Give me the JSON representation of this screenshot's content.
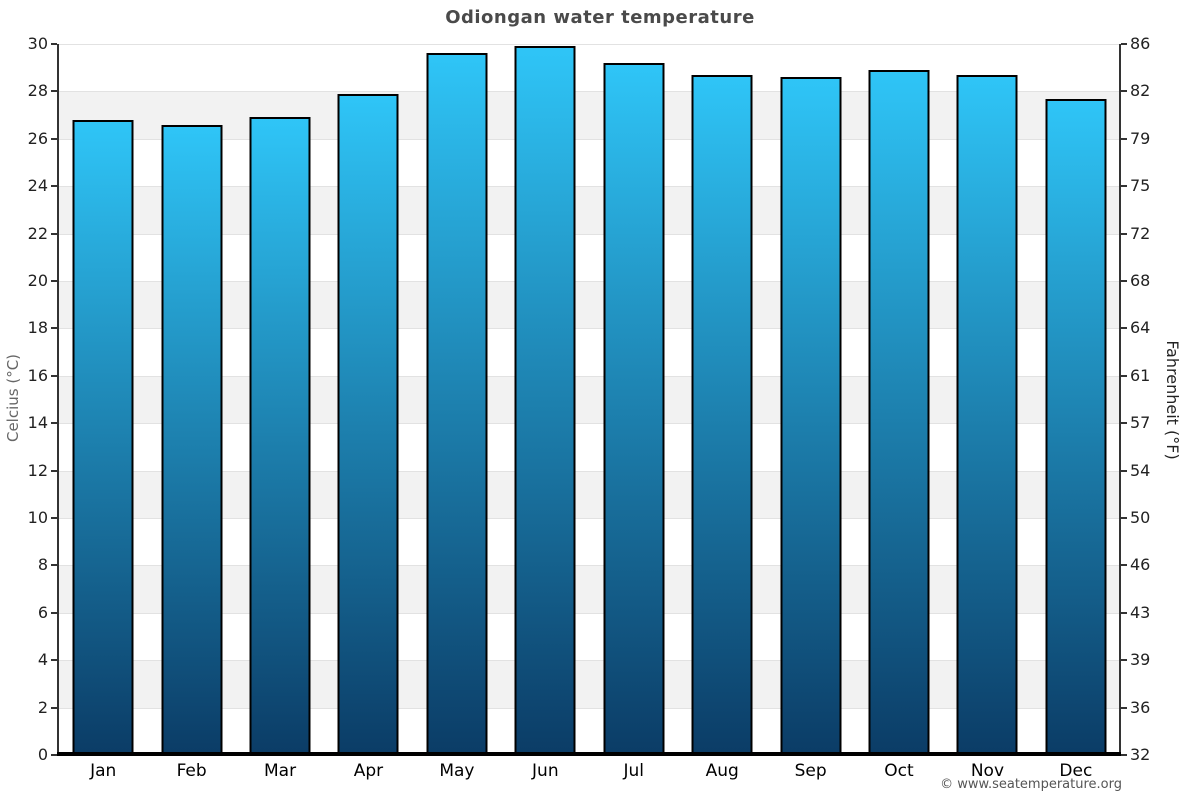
{
  "chart": {
    "title": "Odiongan water temperature",
    "left_axis_label": "Celcius (°C)",
    "right_axis_label": "Fahrenheit (°F)"
  },
  "footer": {
    "copyright": "© www.seatemperature.org"
  },
  "chart_data": {
    "type": "bar",
    "title": "Odiongan water temperature",
    "categories": [
      "Jan",
      "Feb",
      "Mar",
      "Apr",
      "May",
      "Jun",
      "Jul",
      "Aug",
      "Sep",
      "Oct",
      "Nov",
      "Dec"
    ],
    "values": [
      26.8,
      26.6,
      26.9,
      27.9,
      29.6,
      29.9,
      29.2,
      28.7,
      28.6,
      28.9,
      28.7,
      27.7
    ],
    "xlabel": "",
    "ylabel_left": "Celcius (°C)",
    "ylabel_right": "Fahrenheit (°F)",
    "ylim": [
      0,
      30
    ],
    "celsius_ticks": [
      30,
      28,
      26,
      24,
      22,
      20,
      18,
      16,
      14,
      12,
      10,
      8,
      6,
      4,
      2,
      0
    ],
    "fahrenheit_ticks": [
      86,
      82,
      79,
      75,
      72,
      68,
      64,
      61,
      57,
      54,
      50,
      46,
      43,
      39,
      36,
      32
    ],
    "grid": "alternating horizontal bands every 2°C, white and light gray",
    "legend": "none"
  },
  "colors": {
    "bar_gradient_top": "#2fc5f7",
    "bar_gradient_bottom": "#0b3c66",
    "bar_border": "#000000",
    "band_gray": "#f2f2f2",
    "band_white": "#ffffff",
    "gridline": "#e2e2e2",
    "axis_line": "#333333",
    "x_axis_line": "#000000",
    "title_text": "#4a4a4a",
    "tick_text": "#222222",
    "left_axis_title_text": "#666666",
    "copyright_text": "#555555"
  }
}
